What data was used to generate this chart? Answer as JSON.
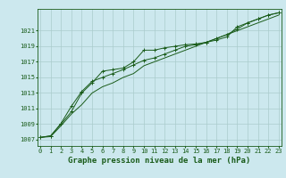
{
  "title": "Graphe pression niveau de la mer (hPa)",
  "xlabel_hours": [
    0,
    1,
    2,
    3,
    4,
    5,
    6,
    7,
    8,
    9,
    10,
    11,
    12,
    13,
    14,
    15,
    16,
    17,
    18,
    19,
    20,
    21,
    22,
    23
  ],
  "line1": [
    1007.3,
    1007.5,
    1009.0,
    1010.6,
    1013.0,
    1014.3,
    1015.8,
    1016.0,
    1016.2,
    1017.0,
    1018.5,
    1018.5,
    1018.8,
    1019.0,
    1019.2,
    1019.3,
    1019.5,
    1019.8,
    1020.2,
    1021.5,
    1022.0,
    1022.5,
    1023.0,
    1023.3
  ],
  "line2": [
    1007.3,
    1007.5,
    1009.1,
    1011.3,
    1013.2,
    1014.5,
    1015.0,
    1015.5,
    1016.0,
    1016.6,
    1017.2,
    1017.5,
    1018.0,
    1018.5,
    1019.0,
    1019.2,
    1019.5,
    1020.0,
    1020.5,
    1021.2,
    1022.0,
    1022.5,
    1023.0,
    1023.3
  ],
  "line3": [
    1007.3,
    1007.4,
    1008.8,
    1010.3,
    1011.5,
    1013.0,
    1013.8,
    1014.3,
    1015.0,
    1015.5,
    1016.5,
    1017.0,
    1017.5,
    1018.0,
    1018.5,
    1019.0,
    1019.5,
    1020.0,
    1020.5,
    1021.0,
    1021.5,
    1022.0,
    1022.5,
    1023.0
  ],
  "yticks": [
    1007,
    1009,
    1011,
    1013,
    1015,
    1017,
    1019,
    1021
  ],
  "ylim": [
    1006.2,
    1023.8
  ],
  "xlim": [
    -0.3,
    23.3
  ],
  "line_color": "#1a5c1a",
  "bg_color": "#cce8ee",
  "grid_color": "#aacccc",
  "title_fontsize": 6.5,
  "tick_fontsize": 5.0
}
